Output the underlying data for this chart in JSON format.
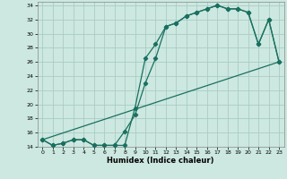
{
  "xlabel": "Humidex (Indice chaleur)",
  "background_color": "#cce8e0",
  "grid_color": "#aaccc4",
  "line_color": "#1a7060",
  "xlim": [
    -0.5,
    23.5
  ],
  "ylim": [
    14,
    34.5
  ],
  "xticks": [
    0,
    1,
    2,
    3,
    4,
    5,
    6,
    7,
    8,
    9,
    10,
    11,
    12,
    13,
    14,
    15,
    16,
    17,
    18,
    19,
    20,
    21,
    22,
    23
  ],
  "yticks": [
    14,
    16,
    18,
    20,
    22,
    24,
    26,
    28,
    30,
    32,
    34
  ],
  "line1_x": [
    0,
    1,
    2,
    3,
    4,
    5,
    6,
    7,
    8,
    9,
    10,
    11,
    12,
    13,
    14,
    15,
    16,
    17,
    18,
    19,
    20,
    21,
    22,
    23
  ],
  "line1_y": [
    15.0,
    14.2,
    14.5,
    15.0,
    15.0,
    14.2,
    14.2,
    14.2,
    14.2,
    19.5,
    26.5,
    28.5,
    31.0,
    31.5,
    32.5,
    33.0,
    33.5,
    34.0,
    33.5,
    33.5,
    33.0,
    28.5,
    32.0,
    26.0
  ],
  "line2_x": [
    0,
    1,
    2,
    3,
    4,
    5,
    6,
    7,
    8,
    9,
    10,
    11,
    12,
    13,
    14,
    15,
    16,
    17,
    18,
    19,
    20,
    21,
    22,
    23
  ],
  "line2_y": [
    15.0,
    14.2,
    14.5,
    15.0,
    15.0,
    14.2,
    14.2,
    14.2,
    16.2,
    18.5,
    23.0,
    26.5,
    31.0,
    31.5,
    32.5,
    33.0,
    33.5,
    34.0,
    33.5,
    33.5,
    33.0,
    28.5,
    32.0,
    26.0
  ],
  "line3_x": [
    0,
    23
  ],
  "line3_y": [
    15.0,
    26.0
  ]
}
